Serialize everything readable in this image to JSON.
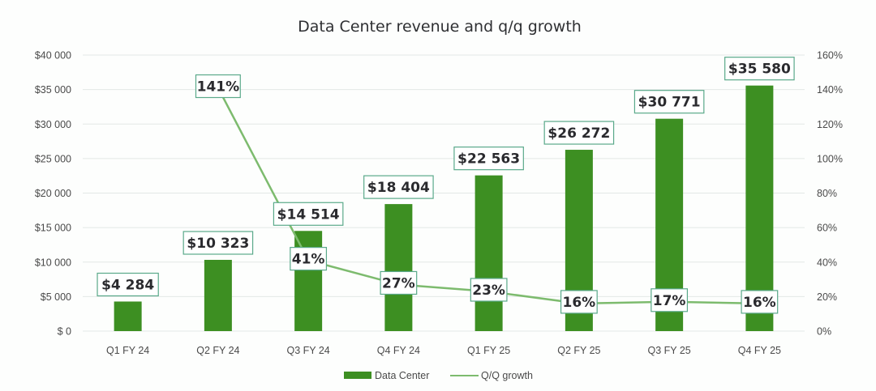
{
  "chart_data": {
    "type": "bar",
    "title": "Data Center revenue and q/q growth",
    "categories": [
      "Q1 FY 24",
      "Q2 FY 24",
      "Q3 FY 24",
      "Q4 FY 24",
      "Q1 FY 25",
      "Q2 FY 25",
      "Q3 FY 25",
      "Q4 FY 25"
    ],
    "series": [
      {
        "name": "Data Center",
        "type": "bar",
        "axis": "left",
        "color": "#3d8f22",
        "values": [
          4284,
          10323,
          14514,
          18404,
          22563,
          26272,
          30771,
          35580
        ],
        "labels": [
          "$4 284",
          "$10 323",
          "$14 514",
          "$18 404",
          "$22 563",
          "$26 272",
          "$30 771",
          "$35 580"
        ]
      },
      {
        "name": "Q/Q growth",
        "type": "line",
        "axis": "right",
        "color": "#7dbb6e",
        "values": [
          null,
          141,
          41,
          27,
          23,
          16,
          17,
          16
        ],
        "labels": [
          null,
          "141%",
          "41%",
          "27%",
          "23%",
          "16%",
          "17%",
          "16%"
        ]
      }
    ],
    "y_left": {
      "label": "",
      "range": [
        0,
        40000
      ],
      "ticks": [
        0,
        5000,
        10000,
        15000,
        20000,
        25000,
        30000,
        35000,
        40000
      ],
      "tick_labels": [
        "$ 0",
        "$5 000",
        "$10 000",
        "$15 000",
        "$20 000",
        "$25 000",
        "$30 000",
        "$35 000",
        "$40 000"
      ]
    },
    "y_right": {
      "label": "",
      "range": [
        0,
        160
      ],
      "ticks": [
        0,
        20,
        40,
        60,
        80,
        100,
        120,
        140,
        160
      ],
      "tick_labels": [
        "0%",
        "20%",
        "40%",
        "60%",
        "80%",
        "100%",
        "120%",
        "140%",
        "160%"
      ]
    },
    "xlabel": "",
    "grid": true,
    "legend": {
      "position": "bottom",
      "entries": [
        "Data Center",
        "Q/Q growth"
      ]
    },
    "label_box_border": "#5aa98a",
    "gridline_color": "#e3e8e6"
  }
}
